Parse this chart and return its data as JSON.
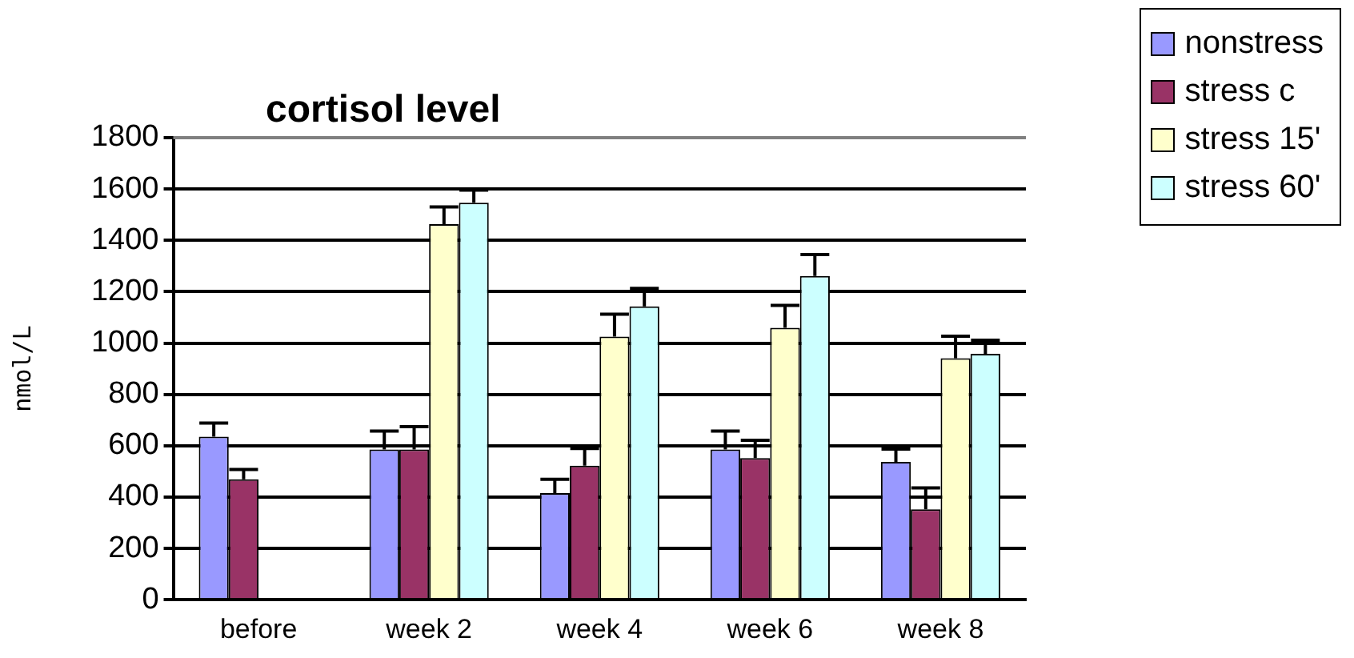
{
  "chart_data": {
    "type": "bar",
    "title": "cortisol level",
    "ylabel": "nmol/L",
    "categories": [
      "before",
      "week 2",
      "week 4",
      "week 6",
      "week 8"
    ],
    "series": [
      {
        "name": "nonstress",
        "color": "#9999ff",
        "values": [
          635,
          585,
          415,
          585,
          537
        ],
        "errors": [
          [
            635,
            688
          ],
          [
            585,
            657
          ],
          [
            415,
            469
          ],
          [
            585,
            657
          ],
          [
            537,
            587
          ]
        ]
      },
      {
        "name": "stress c",
        "color": "#993366",
        "values": [
          469,
          585,
          522,
          552,
          352
        ],
        "errors": [
          [
            469,
            507
          ],
          [
            585,
            674
          ],
          [
            522,
            589
          ],
          [
            552,
            621
          ],
          [
            352,
            436
          ]
        ]
      },
      {
        "name": "stress 15'",
        "color": "#ffffcc",
        "values": [
          null,
          1463,
          1025,
          1059,
          941
        ],
        "errors": [
          null,
          [
            1463,
            1530
          ],
          [
            1025,
            1112
          ],
          [
            1059,
            1147
          ],
          [
            941,
            1027
          ]
        ]
      },
      {
        "name": "stress 60'",
        "color": "#ccffff",
        "values": [
          null,
          1547,
          1143,
          1261,
          958
        ],
        "errors": [
          null,
          [
            1547,
            1596
          ],
          [
            1143,
            1213
          ],
          [
            1261,
            1345
          ],
          [
            958,
            1011
          ]
        ]
      }
    ],
    "ylim": [
      0,
      1800
    ],
    "yticks": [
      0,
      200,
      400,
      600,
      800,
      1000,
      1200,
      1400,
      1600,
      1800
    ],
    "grid": "y",
    "legend": "top right"
  }
}
